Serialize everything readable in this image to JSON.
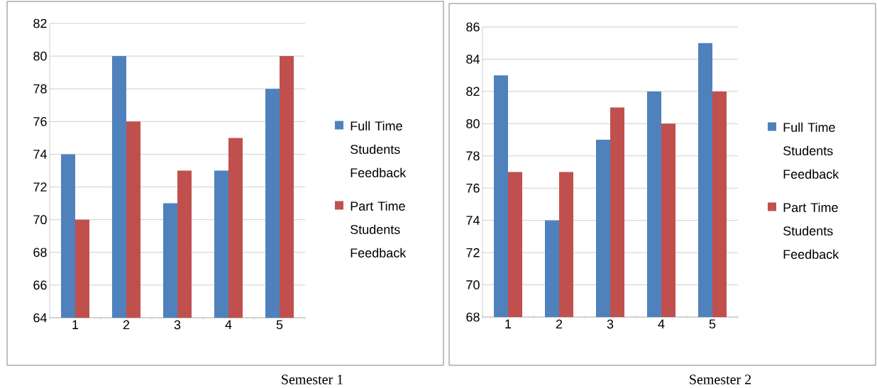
{
  "chart_data": [
    {
      "type": "bar",
      "categories": [
        "1",
        "2",
        "3",
        "4",
        "5"
      ],
      "series": [
        {
          "name": "Full Time Students Feedback",
          "color": "#4f81bd",
          "values": [
            74,
            80,
            71,
            73,
            78
          ]
        },
        {
          "name": "Part Time Students Feedback",
          "color": "#c0504d",
          "values": [
            70,
            76,
            73,
            75,
            80
          ]
        }
      ],
      "ylim": [
        64,
        82
      ],
      "yticks": [
        64,
        66,
        68,
        70,
        72,
        74,
        76,
        78,
        80,
        82
      ],
      "grid": "y",
      "legend": "right",
      "annotations": [
        "Semester 1"
      ]
    },
    {
      "type": "bar",
      "categories": [
        "1",
        "2",
        "3",
        "4",
        "5"
      ],
      "series": [
        {
          "name": "Full Time Students Feedback",
          "color": "#4f81bd",
          "values": [
            83,
            74,
            79,
            82,
            85
          ]
        },
        {
          "name": "Part Time Students Feedback",
          "color": "#c0504d",
          "values": [
            77,
            77,
            81,
            80,
            82
          ]
        }
      ],
      "ylim": [
        68,
        86
      ],
      "yticks": [
        68,
        70,
        72,
        74,
        76,
        78,
        80,
        82,
        84,
        86
      ],
      "grid": "y",
      "legend": "right",
      "annotations": [
        "Semester 2"
      ]
    }
  ]
}
